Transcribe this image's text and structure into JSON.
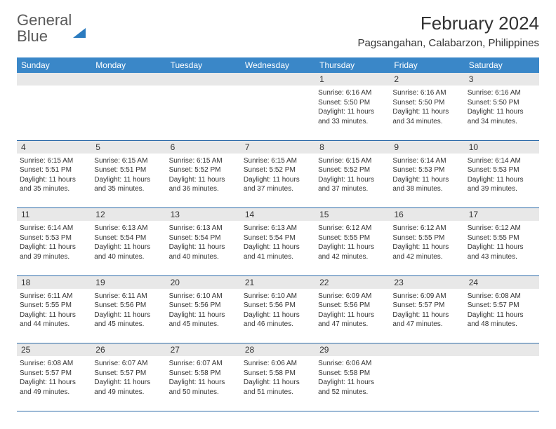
{
  "logo": {
    "text_general": "General",
    "text_blue": "Blue"
  },
  "title": {
    "month": "February 2024",
    "location": "Pagsangahan, Calabarzon, Philippines"
  },
  "colors": {
    "header_bg": "#3a87c8",
    "header_text": "#ffffff",
    "daynum_bg": "#e8e8e8",
    "border": "#2b6aa8",
    "text": "#333333",
    "logo_gray": "#5a5a5a",
    "logo_blue": "#2b7bbf",
    "page_bg": "#ffffff"
  },
  "typography": {
    "month_title_fontsize": 26,
    "location_fontsize": 15,
    "weekday_fontsize": 12,
    "daynum_fontsize": 12,
    "content_fontsize": 10,
    "logo_fontsize": 22
  },
  "weekdays": [
    "Sunday",
    "Monday",
    "Tuesday",
    "Wednesday",
    "Thursday",
    "Friday",
    "Saturday"
  ],
  "weeks": [
    {
      "nums": [
        "",
        "",
        "",
        "",
        "1",
        "2",
        "3"
      ],
      "cells": [
        null,
        null,
        null,
        null,
        {
          "sunrise": "6:16 AM",
          "sunset": "5:50 PM",
          "daylight": "11 hours and 33 minutes."
        },
        {
          "sunrise": "6:16 AM",
          "sunset": "5:50 PM",
          "daylight": "11 hours and 34 minutes."
        },
        {
          "sunrise": "6:16 AM",
          "sunset": "5:50 PM",
          "daylight": "11 hours and 34 minutes."
        }
      ]
    },
    {
      "nums": [
        "4",
        "5",
        "6",
        "7",
        "8",
        "9",
        "10"
      ],
      "cells": [
        {
          "sunrise": "6:15 AM",
          "sunset": "5:51 PM",
          "daylight": "11 hours and 35 minutes."
        },
        {
          "sunrise": "6:15 AM",
          "sunset": "5:51 PM",
          "daylight": "11 hours and 35 minutes."
        },
        {
          "sunrise": "6:15 AM",
          "sunset": "5:52 PM",
          "daylight": "11 hours and 36 minutes."
        },
        {
          "sunrise": "6:15 AM",
          "sunset": "5:52 PM",
          "daylight": "11 hours and 37 minutes."
        },
        {
          "sunrise": "6:15 AM",
          "sunset": "5:52 PM",
          "daylight": "11 hours and 37 minutes."
        },
        {
          "sunrise": "6:14 AM",
          "sunset": "5:53 PM",
          "daylight": "11 hours and 38 minutes."
        },
        {
          "sunrise": "6:14 AM",
          "sunset": "5:53 PM",
          "daylight": "11 hours and 39 minutes."
        }
      ]
    },
    {
      "nums": [
        "11",
        "12",
        "13",
        "14",
        "15",
        "16",
        "17"
      ],
      "cells": [
        {
          "sunrise": "6:14 AM",
          "sunset": "5:53 PM",
          "daylight": "11 hours and 39 minutes."
        },
        {
          "sunrise": "6:13 AM",
          "sunset": "5:54 PM",
          "daylight": "11 hours and 40 minutes."
        },
        {
          "sunrise": "6:13 AM",
          "sunset": "5:54 PM",
          "daylight": "11 hours and 40 minutes."
        },
        {
          "sunrise": "6:13 AM",
          "sunset": "5:54 PM",
          "daylight": "11 hours and 41 minutes."
        },
        {
          "sunrise": "6:12 AM",
          "sunset": "5:55 PM",
          "daylight": "11 hours and 42 minutes."
        },
        {
          "sunrise": "6:12 AM",
          "sunset": "5:55 PM",
          "daylight": "11 hours and 42 minutes."
        },
        {
          "sunrise": "6:12 AM",
          "sunset": "5:55 PM",
          "daylight": "11 hours and 43 minutes."
        }
      ]
    },
    {
      "nums": [
        "18",
        "19",
        "20",
        "21",
        "22",
        "23",
        "24"
      ],
      "cells": [
        {
          "sunrise": "6:11 AM",
          "sunset": "5:55 PM",
          "daylight": "11 hours and 44 minutes."
        },
        {
          "sunrise": "6:11 AM",
          "sunset": "5:56 PM",
          "daylight": "11 hours and 45 minutes."
        },
        {
          "sunrise": "6:10 AM",
          "sunset": "5:56 PM",
          "daylight": "11 hours and 45 minutes."
        },
        {
          "sunrise": "6:10 AM",
          "sunset": "5:56 PM",
          "daylight": "11 hours and 46 minutes."
        },
        {
          "sunrise": "6:09 AM",
          "sunset": "5:56 PM",
          "daylight": "11 hours and 47 minutes."
        },
        {
          "sunrise": "6:09 AM",
          "sunset": "5:57 PM",
          "daylight": "11 hours and 47 minutes."
        },
        {
          "sunrise": "6:08 AM",
          "sunset": "5:57 PM",
          "daylight": "11 hours and 48 minutes."
        }
      ]
    },
    {
      "nums": [
        "25",
        "26",
        "27",
        "28",
        "29",
        "",
        ""
      ],
      "cells": [
        {
          "sunrise": "6:08 AM",
          "sunset": "5:57 PM",
          "daylight": "11 hours and 49 minutes."
        },
        {
          "sunrise": "6:07 AM",
          "sunset": "5:57 PM",
          "daylight": "11 hours and 49 minutes."
        },
        {
          "sunrise": "6:07 AM",
          "sunset": "5:58 PM",
          "daylight": "11 hours and 50 minutes."
        },
        {
          "sunrise": "6:06 AM",
          "sunset": "5:58 PM",
          "daylight": "11 hours and 51 minutes."
        },
        {
          "sunrise": "6:06 AM",
          "sunset": "5:58 PM",
          "daylight": "11 hours and 52 minutes."
        },
        null,
        null
      ]
    }
  ],
  "labels": {
    "sunrise": "Sunrise:",
    "sunset": "Sunset:",
    "daylight": "Daylight:"
  }
}
